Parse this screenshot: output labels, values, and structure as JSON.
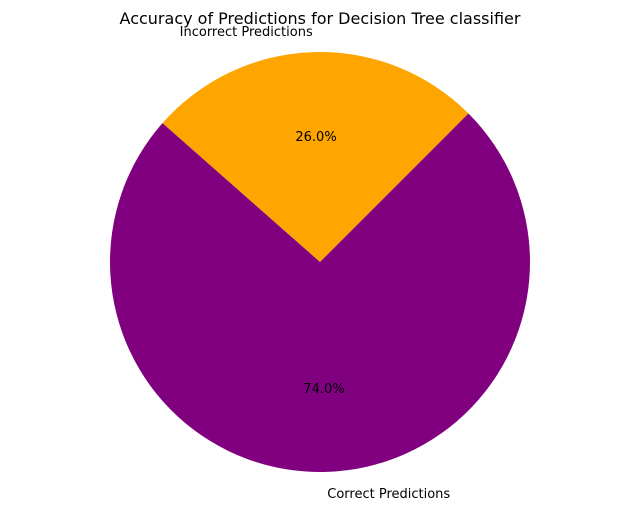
{
  "chart_data": {
    "type": "pie",
    "title": "Accuracy of Predictions for Decision Tree classifier",
    "labels": [
      "Correct Predictions",
      "Incorrect Predictions"
    ],
    "values": [
      74.0,
      26.0
    ],
    "percent_labels": [
      "74.0%",
      "26.0%"
    ],
    "colors": [
      "#800080",
      "#ffa500"
    ],
    "start_angle_deg": 45,
    "direction": "counterclockwise",
    "legend": "none"
  }
}
